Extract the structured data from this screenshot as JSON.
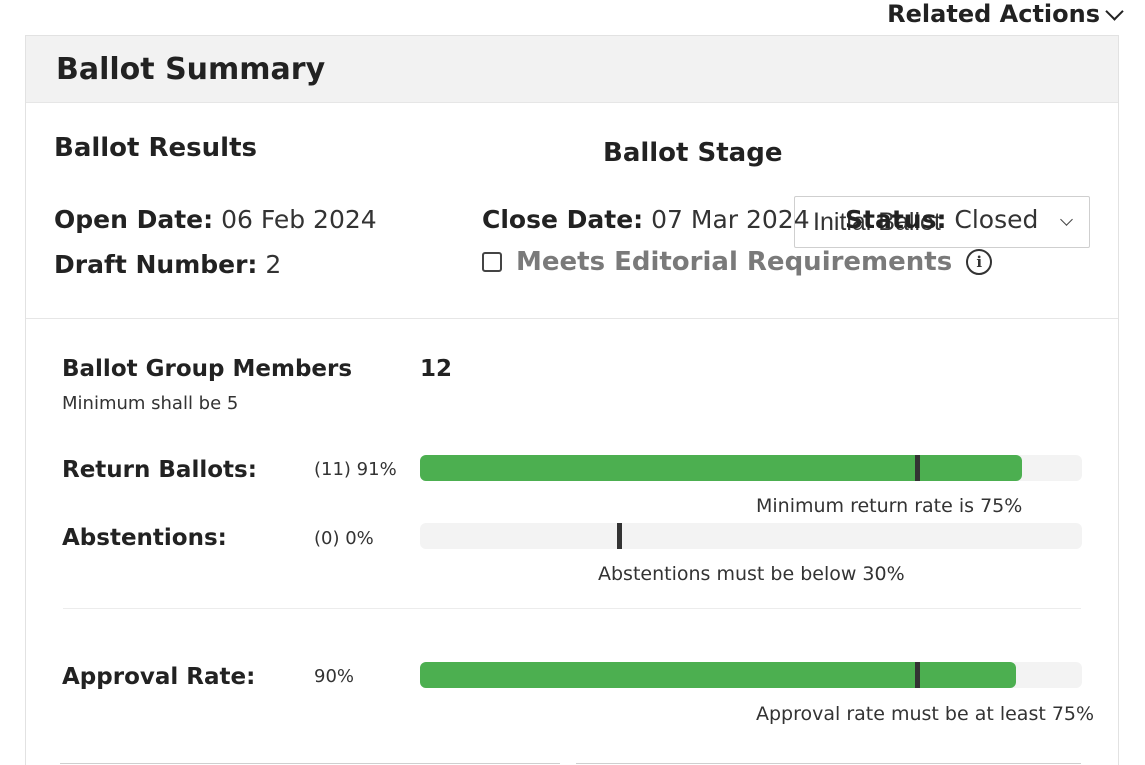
{
  "related_actions": "Related Actions",
  "card_title": "Ballot Summary",
  "results": {
    "title": "Ballot Results",
    "stage_label": "Ballot Stage",
    "stage_value": "Initial Ballot",
    "open_date_label": "Open Date:",
    "open_date_value": "06 Feb 2024",
    "close_date_label": "Close Date:",
    "close_date_value": "07 Mar 2024",
    "status_label": "Status:",
    "status_value": "Closed",
    "draft_label": "Draft Number:",
    "draft_value": "2",
    "editorial_label": "Meets Editorial Requirements",
    "editorial_checked": false
  },
  "stats": {
    "members_label": "Ballot Group Members",
    "members_value": "12",
    "members_note": "Minimum shall be 5",
    "return_label": "Return Ballots:",
    "return_value": "(11) 91%",
    "return_fraction": 0.91,
    "return_threshold_fraction": 0.75,
    "return_note": "Minimum return rate is 75%",
    "abstain_label": "Abstentions:",
    "abstain_value": "(0) 0%",
    "abstain_fraction": 0.0,
    "abstain_threshold_fraction": 0.3,
    "abstain_note": "Abstentions must be below 30%",
    "approval_label": "Approval Rate:",
    "approval_value": "90%",
    "approval_fraction": 0.9,
    "approval_threshold_fraction": 0.75,
    "approval_note": "Approval rate must be at least 75%"
  },
  "colors": {
    "bar_fill": "#4caf50",
    "bar_track": "#f3f3f3",
    "marker": "#333333"
  }
}
